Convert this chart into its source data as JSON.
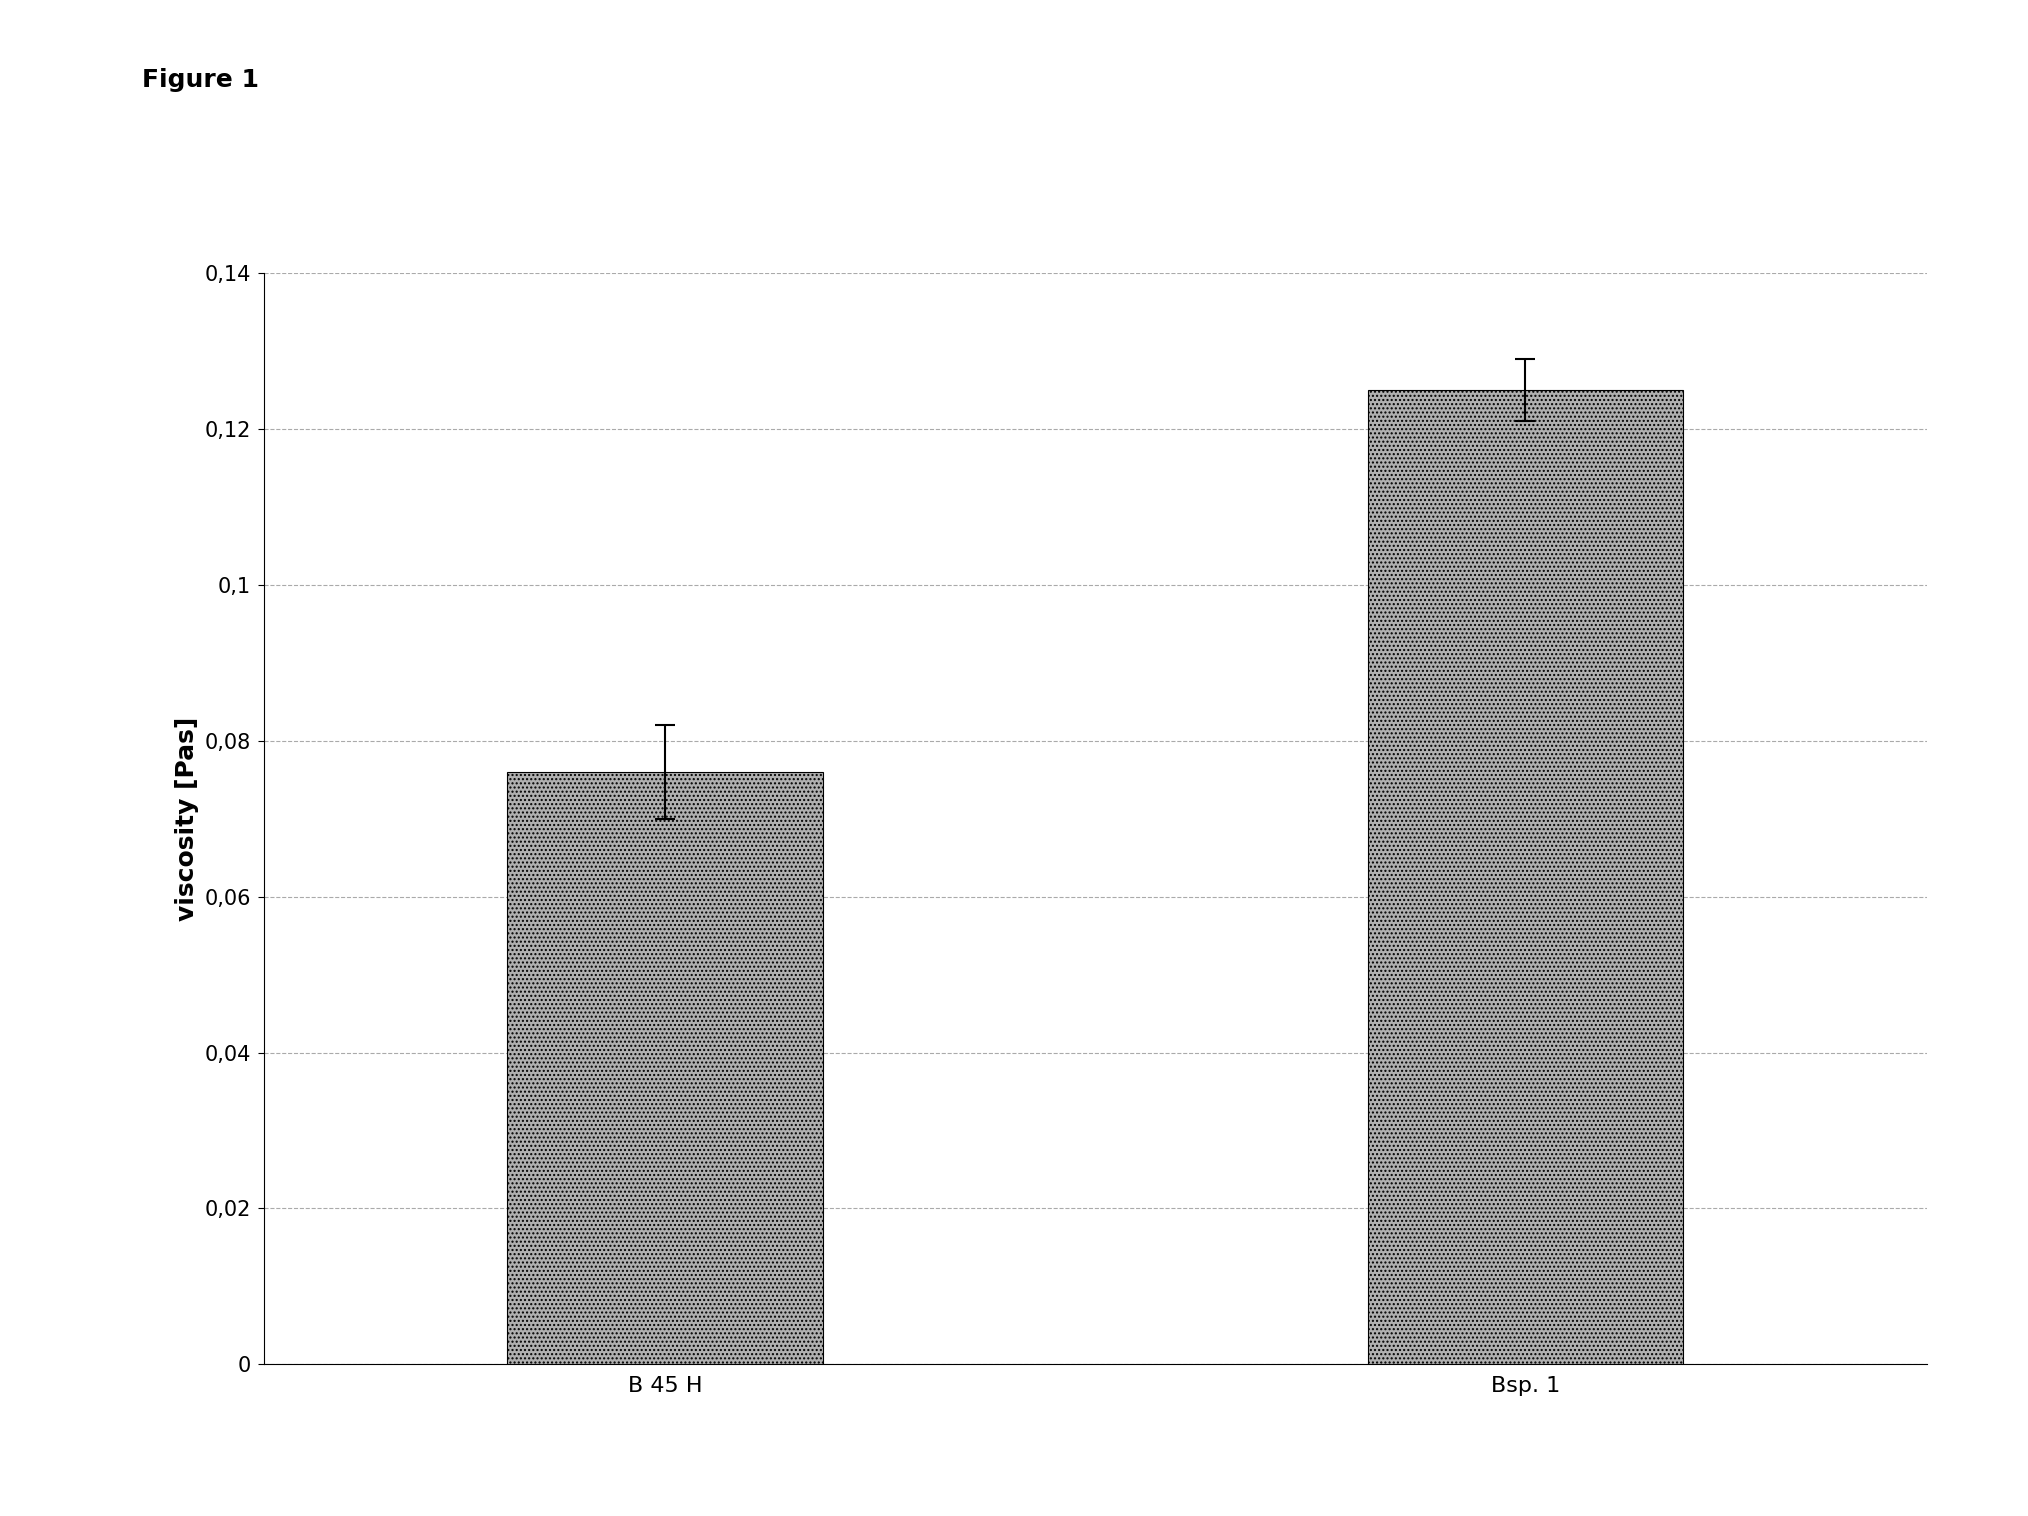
{
  "categories": [
    "B 45 H",
    "Bsp. 1"
  ],
  "values": [
    0.076,
    0.125
  ],
  "errors": [
    0.006,
    0.004
  ],
  "bar_color": "#b0b0b0",
  "bar_edgecolor": "#000000",
  "ylabel": "viscosity [Pas]",
  "ylim": [
    0,
    0.14
  ],
  "yticks": [
    0,
    0.02,
    0.04,
    0.06,
    0.08,
    0.1,
    0.12,
    0.14
  ],
  "ytick_labels": [
    "0",
    "0,02",
    "0,04",
    "0,06",
    "0,08",
    "0,1",
    "0,12",
    "0,14"
  ],
  "figure_label": "Figure 1",
  "background_color": "#ffffff",
  "grid_color": "#aaaaaa",
  "bar_width": 0.25,
  "title_fontsize": 18,
  "label_fontsize": 16,
  "tick_fontsize": 15
}
